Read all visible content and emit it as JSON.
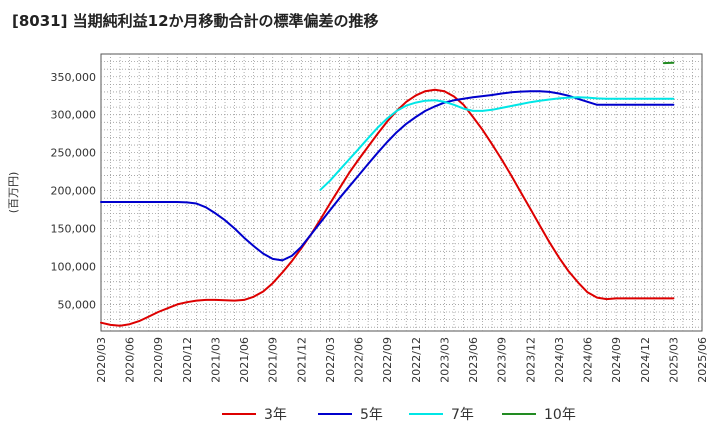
{
  "chart_data": {
    "type": "line",
    "title": "[8031]  当期純利益12か月移動合計の標準偏差の推移",
    "xlabel": "",
    "ylabel": "(百万円)",
    "ylim": [
      15000,
      380000
    ],
    "y_ticks": [
      50000,
      100000,
      150000,
      200000,
      250000,
      300000,
      350000
    ],
    "y_tick_labels": [
      "50,000",
      "100,000",
      "150,000",
      "200,000",
      "250,000",
      "300,000",
      "350,000"
    ],
    "x_range_months": [
      0,
      63
    ],
    "x_ticks": [
      "2020/03",
      "2020/06",
      "2020/09",
      "2020/12",
      "2021/03",
      "2021/06",
      "2021/09",
      "2021/12",
      "2022/03",
      "2022/06",
      "2022/09",
      "2022/12",
      "2023/03",
      "2023/06",
      "2023/09",
      "2023/12",
      "2024/03",
      "2024/06",
      "2024/09",
      "2024/12",
      "2025/03",
      "2025/06"
    ],
    "grid": true,
    "legend_position": "bottom",
    "series": [
      {
        "name": "3年",
        "color": "#dd0000",
        "x": [
          0,
          1,
          2,
          3,
          4,
          5,
          6,
          7,
          8,
          9,
          10,
          11,
          12,
          13,
          14,
          15,
          16,
          17,
          18,
          19,
          20,
          21,
          22,
          23,
          24,
          25,
          26,
          27,
          28,
          29,
          30,
          31,
          32,
          33,
          34,
          35,
          36,
          37,
          38,
          39,
          40,
          41,
          42,
          43,
          44,
          45,
          46,
          47,
          48,
          49,
          50,
          51,
          52,
          53,
          54,
          55,
          56,
          57,
          58,
          59,
          60
        ],
        "values": [
          26000,
          23000,
          22000,
          24000,
          28000,
          34000,
          40000,
          45000,
          50000,
          53000,
          55000,
          56000,
          56000,
          55500,
          55000,
          56000,
          60000,
          67000,
          78000,
          92000,
          107000,
          124000,
          142000,
          162000,
          183000,
          203000,
          223000,
          241000,
          258000,
          275000,
          291000,
          305000,
          317000,
          325500,
          331000,
          333000,
          331000,
          324000,
          313000,
          297000,
          280000,
          261000,
          241000,
          220000,
          198000,
          176000,
          154000,
          132000,
          112000,
          94000,
          79000,
          66000,
          59000,
          57000,
          58000,
          58000,
          58000,
          58000,
          58000,
          58000,
          58000
        ]
      },
      {
        "name": "5年",
        "color": "#0000cc",
        "x": [
          0,
          1,
          2,
          3,
          4,
          5,
          6,
          7,
          8,
          9,
          10,
          11,
          12,
          13,
          14,
          15,
          16,
          17,
          18,
          19,
          20,
          21,
          22,
          23,
          24,
          25,
          26,
          27,
          28,
          29,
          30,
          31,
          32,
          33,
          34,
          35,
          36,
          37,
          38,
          39,
          40,
          41,
          42,
          43,
          44,
          45,
          46,
          47,
          48,
          49,
          50,
          51,
          52,
          53,
          54,
          55,
          56,
          57,
          58,
          59,
          60
        ],
        "values": [
          185000,
          185000,
          185000,
          185000,
          185000,
          185000,
          185000,
          185000,
          185000,
          184500,
          183000,
          178000,
          170000,
          161000,
          150000,
          138000,
          127000,
          117000,
          110000,
          108000,
          114000,
          126000,
          142000,
          158000,
          174000,
          190000,
          205000,
          220000,
          235000,
          250000,
          264000,
          277000,
          288000,
          297000,
          305000,
          311000,
          316000,
          319000,
          321000,
          323000,
          324500,
          326000,
          328000,
          329500,
          330500,
          331000,
          331000,
          330000,
          328000,
          325000,
          321000,
          317000,
          313000,
          313000,
          313000,
          313000,
          313000,
          313000,
          313000,
          313000,
          313000
        ]
      },
      {
        "name": "7年",
        "color": "#00e6e6",
        "x": [
          23,
          24,
          25,
          26,
          27,
          28,
          29,
          30,
          31,
          32,
          33,
          34,
          35,
          36,
          37,
          38,
          39,
          40,
          41,
          42,
          43,
          44,
          45,
          46,
          47,
          48,
          49,
          50,
          51,
          52,
          53,
          54,
          55,
          56,
          57,
          58,
          59,
          60
        ],
        "values": [
          201000,
          213000,
          227000,
          241000,
          255000,
          269000,
          283000,
          295000,
          305000,
          312000,
          316000,
          318500,
          319000,
          317000,
          313000,
          308000,
          305000,
          305000,
          306500,
          309000,
          311500,
          314000,
          316500,
          318500,
          320000,
          321500,
          322500,
          323000,
          322500,
          321500,
          321000,
          321000,
          321000,
          321000,
          321000,
          321000,
          321000,
          321000
        ]
      },
      {
        "name": "10年",
        "color": "#228B22",
        "x": [
          59,
          60
        ],
        "values": [
          368000,
          368500
        ]
      }
    ]
  }
}
